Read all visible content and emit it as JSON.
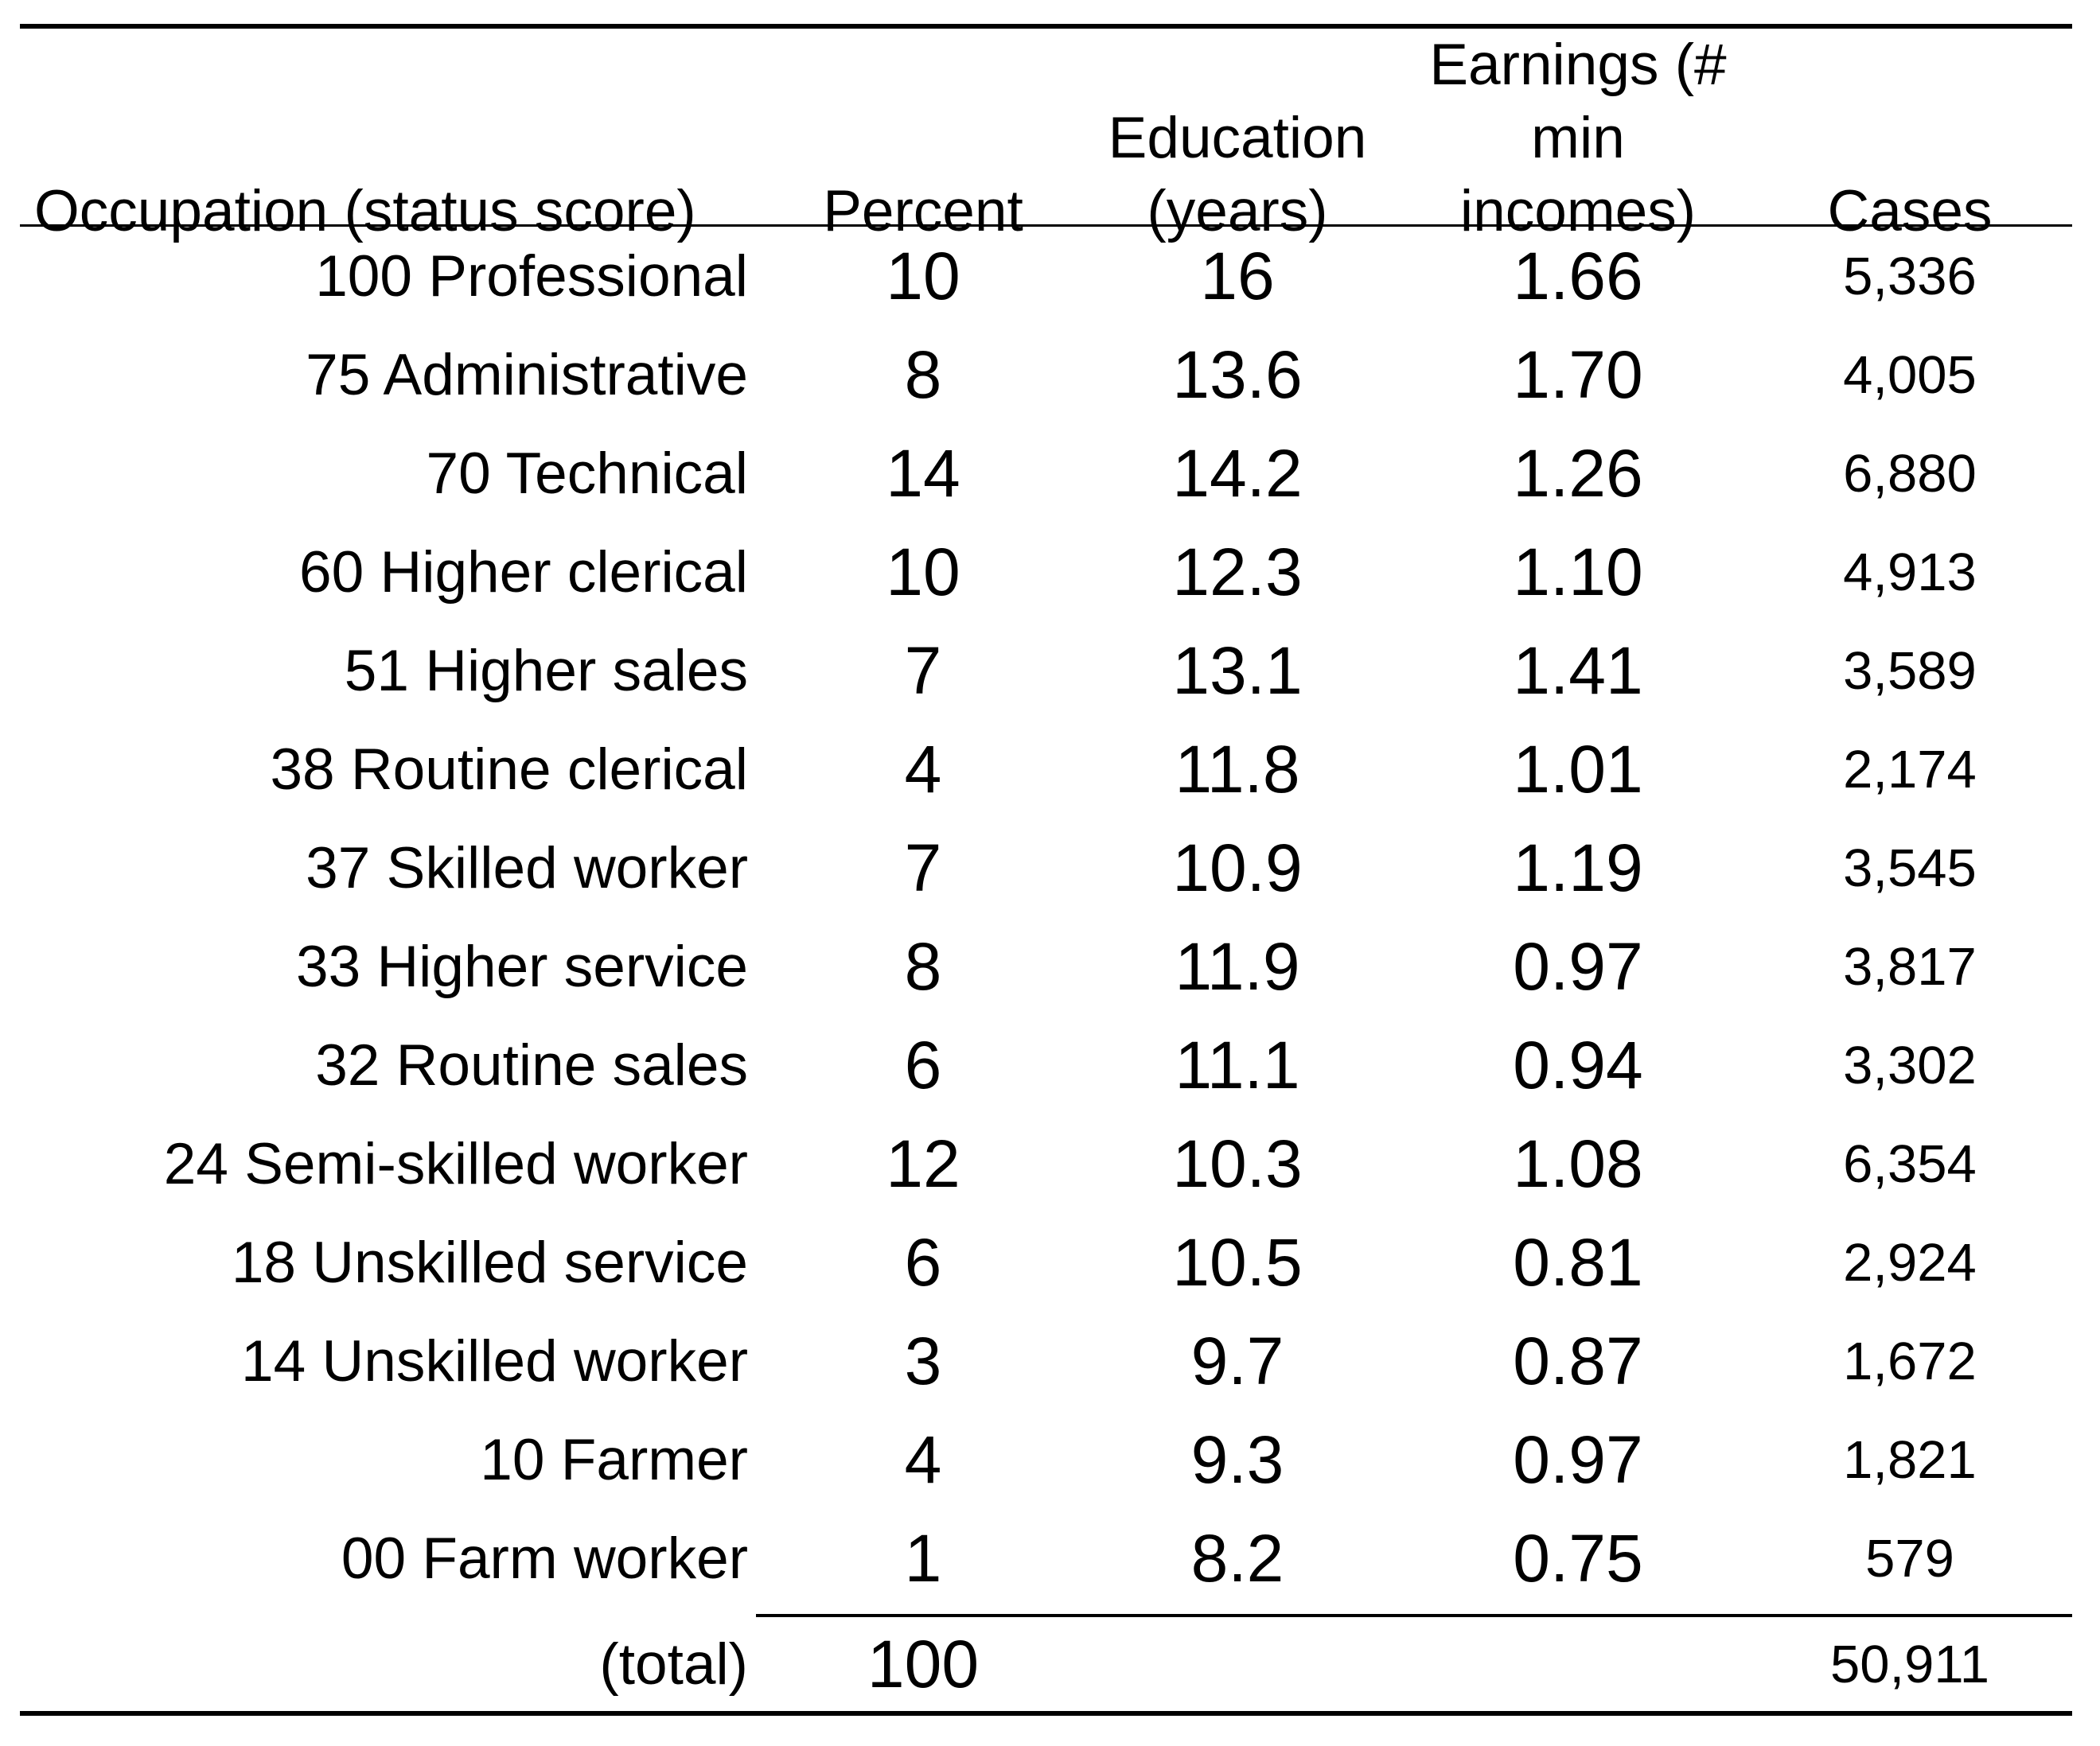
{
  "colors": {
    "text": "#000000",
    "background": "#ffffff"
  },
  "table": {
    "header": {
      "occupation": "Occupation (status score)",
      "percent": "Percent",
      "education_line1": "Education",
      "education_line2": "(years)",
      "earnings_line1": "Earnings (# min",
      "earnings_line2": "incomes)",
      "cases": "Cases"
    },
    "rows": [
      {
        "occupation": "100 Professional",
        "percent": "10",
        "education": "16",
        "earnings": "1.66",
        "cases": "5,336"
      },
      {
        "occupation": "75 Administrative",
        "percent": "8",
        "education": "13.6",
        "earnings": "1.70",
        "cases": "4,005"
      },
      {
        "occupation": "70 Technical",
        "percent": "14",
        "education": "14.2",
        "earnings": "1.26",
        "cases": "6,880"
      },
      {
        "occupation": "60 Higher clerical",
        "percent": "10",
        "education": "12.3",
        "earnings": "1.10",
        "cases": "4,913"
      },
      {
        "occupation": "51 Higher sales",
        "percent": "7",
        "education": "13.1",
        "earnings": "1.41",
        "cases": "3,589"
      },
      {
        "occupation": "38 Routine clerical",
        "percent": "4",
        "education": "11.8",
        "earnings": "1.01",
        "cases": "2,174"
      },
      {
        "occupation": "37 Skilled worker",
        "percent": "7",
        "education": "10.9",
        "earnings": "1.19",
        "cases": "3,545"
      },
      {
        "occupation": "33 Higher service",
        "percent": "8",
        "education": "11.9",
        "earnings": "0.97",
        "cases": "3,817"
      },
      {
        "occupation": "32 Routine sales",
        "percent": "6",
        "education": "11.1",
        "earnings": "0.94",
        "cases": "3,302"
      },
      {
        "occupation": "24 Semi-skilled worker",
        "percent": "12",
        "education": "10.3",
        "earnings": "1.08",
        "cases": "6,354"
      },
      {
        "occupation": "18 Unskilled service",
        "percent": "6",
        "education": "10.5",
        "earnings": "0.81",
        "cases": "2,924"
      },
      {
        "occupation": "14 Unskilled worker",
        "percent": "3",
        "education": "9.7",
        "earnings": "0.87",
        "cases": "1,672"
      },
      {
        "occupation": "10 Farmer",
        "percent": "4",
        "education": "9.3",
        "earnings": "0.97",
        "cases": "1,821"
      },
      {
        "occupation": "00 Farm worker",
        "percent": "1",
        "education": "8.2",
        "earnings": "0.75",
        "cases": "579"
      }
    ],
    "total": {
      "occupation": "(total)",
      "percent": "100",
      "education": "",
      "earnings": "",
      "cases": "50,911"
    }
  },
  "chart_data": {
    "type": "table",
    "title": "",
    "columns": [
      "Occupation (status score)",
      "Percent",
      "Education (years)",
      "Earnings (# min incomes)",
      "Cases"
    ],
    "rows": [
      [
        "100 Professional",
        10,
        16,
        1.66,
        5336
      ],
      [
        "75 Administrative",
        8,
        13.6,
        1.7,
        4005
      ],
      [
        "70 Technical",
        14,
        14.2,
        1.26,
        6880
      ],
      [
        "60 Higher clerical",
        10,
        12.3,
        1.1,
        4913
      ],
      [
        "51 Higher sales",
        7,
        13.1,
        1.41,
        3589
      ],
      [
        "38 Routine clerical",
        4,
        11.8,
        1.01,
        2174
      ],
      [
        "37 Skilled worker",
        7,
        10.9,
        1.19,
        3545
      ],
      [
        "33 Higher service",
        8,
        11.9,
        0.97,
        3817
      ],
      [
        "32 Routine sales",
        6,
        11.1,
        0.94,
        3302
      ],
      [
        "24 Semi-skilled worker",
        12,
        10.3,
        1.08,
        6354
      ],
      [
        "18 Unskilled service",
        6,
        10.5,
        0.81,
        2924
      ],
      [
        "14 Unskilled worker",
        3,
        9.7,
        0.87,
        1672
      ],
      [
        "10 Farmer",
        4,
        9.3,
        0.97,
        1821
      ],
      [
        "00 Farm worker",
        1,
        8.2,
        0.75,
        579
      ]
    ],
    "total_row": [
      "(total)",
      100,
      null,
      null,
      50911
    ]
  }
}
